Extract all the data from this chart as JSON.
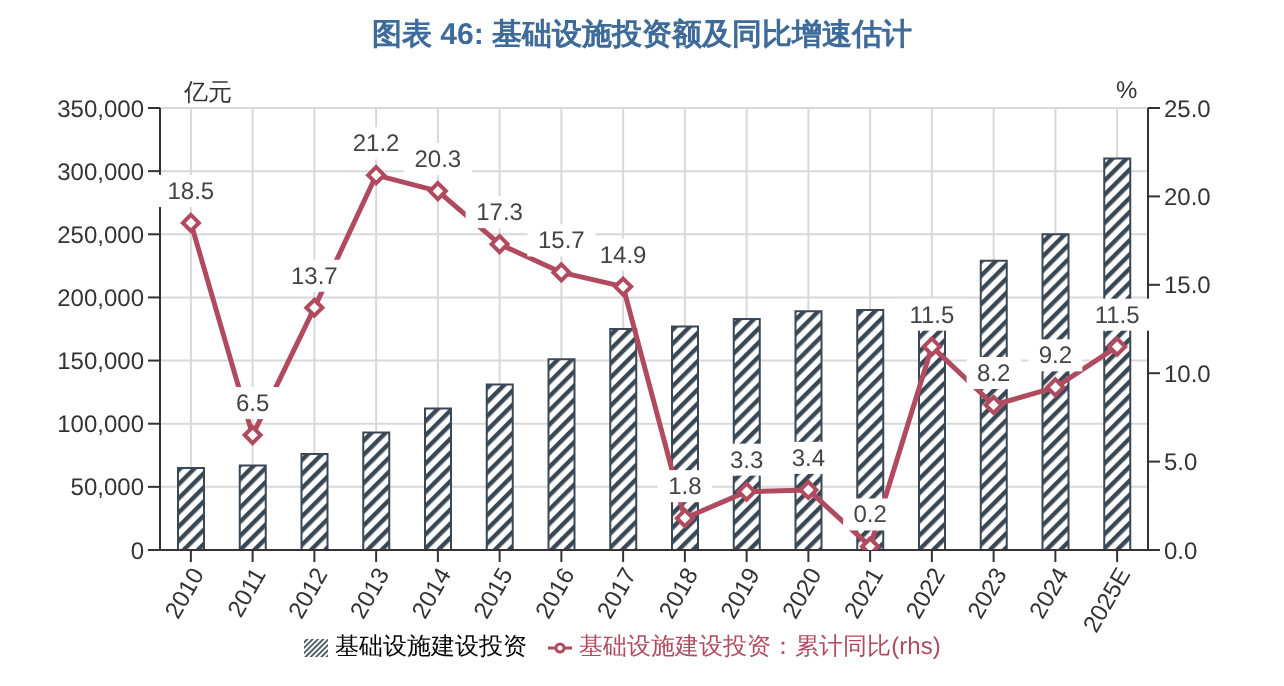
{
  "chart_data": {
    "type": "bar",
    "title": "图表 46: 基础设施投资额及同比增速估计",
    "ylabel": "亿元",
    "y2label": "%",
    "categories": [
      "2010",
      "2011",
      "2012",
      "2013",
      "2014",
      "2015",
      "2016",
      "2017",
      "2018",
      "2019",
      "2020",
      "2021",
      "2022",
      "2023",
      "2024",
      "2025E"
    ],
    "series": [
      {
        "name": "基础设施建设投资",
        "color": "#3a4856",
        "values": [
          65000,
          67000,
          76000,
          93000,
          112000,
          131000,
          151000,
          175000,
          177000,
          183000,
          189000,
          190000,
          176000,
          229000,
          250000,
          310000
        ]
      },
      {
        "name": "基础设施建设投资：累计同比(rhs)",
        "type": "line",
        "axis": "y2",
        "color": "#b04a5e",
        "values": [
          18.5,
          6.5,
          13.7,
          21.2,
          20.3,
          17.3,
          15.7,
          14.9,
          1.8,
          3.3,
          3.4,
          0.2,
          11.5,
          8.2,
          9.2,
          11.5
        ],
        "value_labels": [
          "18.5",
          "6.5",
          "13.7",
          "21.2",
          "20.3",
          "17.3",
          "15.7",
          "14.9",
          "1.8",
          "3.3",
          "3.4",
          "0.2",
          "11.5",
          "8.2",
          "9.2",
          "11.5"
        ]
      }
    ],
    "ylim": [
      0,
      350000
    ],
    "yticks": [
      0,
      {
        "value": 50000,
        "label": "50,000"
      },
      {
        "value": 100000,
        "label": "100,000"
      },
      {
        "value": 150000,
        "label": "150,000"
      },
      {
        "value": 200000,
        "label": "200,000"
      },
      {
        "value": 250000,
        "label": "250,000"
      },
      {
        "value": 300000,
        "label": "300,000"
      },
      {
        "value": 350000,
        "label": "350,000"
      }
    ],
    "y2lim": [
      0,
      25
    ],
    "y2ticks": [
      {
        "value": 0,
        "label": "0.0"
      },
      {
        "value": 5,
        "label": "5.0"
      },
      {
        "value": 10,
        "label": "10.0"
      },
      {
        "value": 15,
        "label": "15.0"
      },
      {
        "value": 20,
        "label": "20.0"
      },
      {
        "value": 25,
        "label": "25.0"
      }
    ],
    "grid": true,
    "legend": "bottom",
    "marker": "diamond",
    "line_style": "solid"
  }
}
